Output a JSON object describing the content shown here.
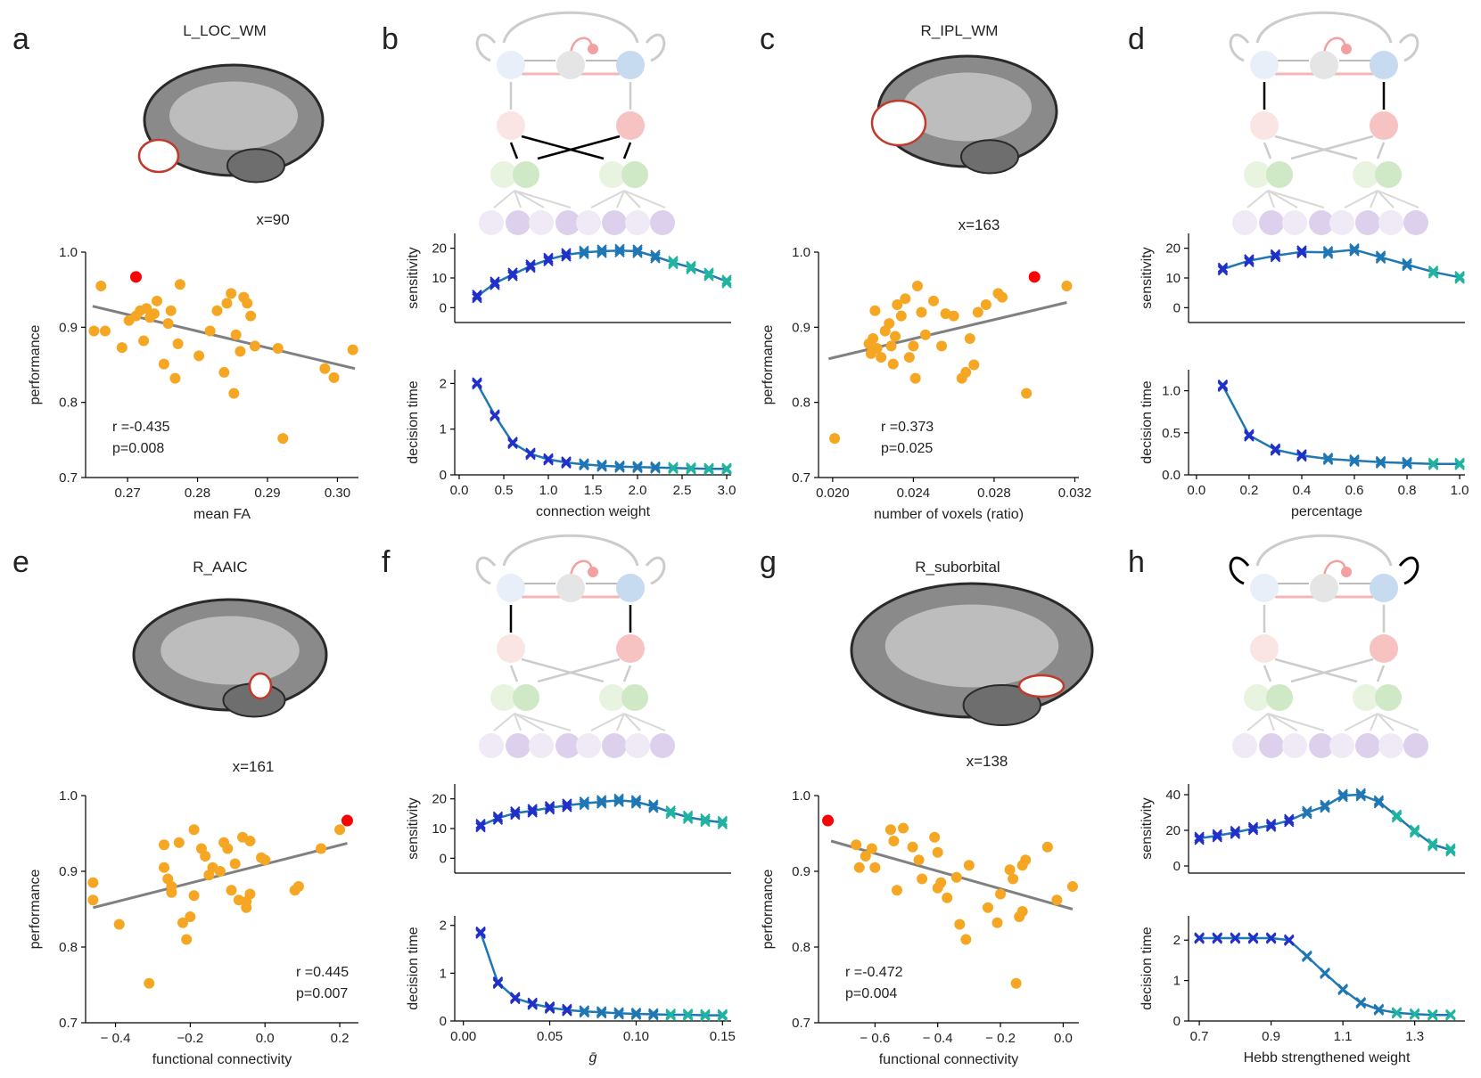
{
  "panels": {
    "a": {
      "letter": "a",
      "region": "L_LOC_WM",
      "slice": "x=90"
    },
    "b": {
      "letter": "b"
    },
    "c": {
      "letter": "c",
      "region": "R_IPL_WM",
      "slice": "x=163"
    },
    "d": {
      "letter": "d"
    },
    "e": {
      "letter": "e",
      "region": "R_AAIC",
      "slice": "x=161"
    },
    "f": {
      "letter": "f"
    },
    "g": {
      "letter": "g",
      "region": "R_suborbital",
      "slice": "x=138"
    },
    "h": {
      "letter": "h"
    }
  },
  "colors": {
    "scatter": "#f5a623",
    "highlight": "#ff0000",
    "fit": "#808080",
    "line": "#1f77b4"
  },
  "chart_data": [
    {
      "id": "a",
      "type": "scatter",
      "xlabel": "mean FA",
      "ylabel": "performance",
      "xlim": [
        0.264,
        0.303
      ],
      "ylim": [
        0.7,
        1.0
      ],
      "xticks": [
        0.27,
        0.28,
        0.29,
        0.3
      ],
      "xticklabels": [
        "0.27",
        "0.28",
        "0.29",
        "0.30"
      ],
      "yticks": [
        0.7,
        0.8,
        0.9,
        1.0
      ],
      "yticklabels": [
        "0.7",
        "0.8",
        "0.9",
        "1.0"
      ],
      "points": [
        [
          0.2652,
          0.895
        ],
        [
          0.2662,
          0.955
        ],
        [
          0.2668,
          0.895
        ],
        [
          0.2692,
          0.873
        ],
        [
          0.2702,
          0.909
        ],
        [
          0.2712,
          0.915
        ],
        [
          0.2718,
          0.922
        ],
        [
          0.2723,
          0.882
        ],
        [
          0.2727,
          0.925
        ],
        [
          0.2732,
          0.913
        ],
        [
          0.2738,
          0.918
        ],
        [
          0.2742,
          0.935
        ],
        [
          0.2752,
          0.851
        ],
        [
          0.2758,
          0.905
        ],
        [
          0.2762,
          0.922
        ],
        [
          0.2768,
          0.832
        ],
        [
          0.2772,
          0.878
        ],
        [
          0.2775,
          0.957
        ],
        [
          0.2802,
          0.862
        ],
        [
          0.2818,
          0.895
        ],
        [
          0.2828,
          0.922
        ],
        [
          0.2838,
          0.84
        ],
        [
          0.2842,
          0.932
        ],
        [
          0.2848,
          0.945
        ],
        [
          0.2852,
          0.812
        ],
        [
          0.2855,
          0.89
        ],
        [
          0.2861,
          0.868
        ],
        [
          0.2866,
          0.94
        ],
        [
          0.2871,
          0.932
        ],
        [
          0.2876,
          0.915
        ],
        [
          0.2882,
          0.875
        ],
        [
          0.2915,
          0.872
        ],
        [
          0.2922,
          0.752
        ],
        [
          0.2982,
          0.845
        ],
        [
          0.2995,
          0.833
        ],
        [
          0.3022,
          0.87
        ]
      ],
      "highlight": [
        0.2712,
        0.967
      ],
      "fit": [
        [
          0.265,
          0.928
        ],
        [
          0.3025,
          0.845
        ]
      ],
      "stats": [
        "r =-0.435",
        "p=0.008"
      ]
    },
    {
      "id": "c",
      "type": "scatter",
      "xlabel": "number of voxels (ratio)",
      "ylabel": "performance",
      "xlim": [
        0.0193,
        0.0322
      ],
      "ylim": [
        0.7,
        1.0
      ],
      "xticks": [
        0.02,
        0.024,
        0.028,
        0.032
      ],
      "xticklabels": [
        "0.020",
        "0.024",
        "0.028",
        "0.032"
      ],
      "yticks": [
        0.7,
        0.8,
        0.9,
        1.0
      ],
      "yticklabels": [
        "0.7",
        "0.8",
        "0.9",
        "1.0"
      ],
      "points": [
        [
          0.0201,
          0.752
        ],
        [
          0.0218,
          0.878
        ],
        [
          0.0219,
          0.865
        ],
        [
          0.022,
          0.885
        ],
        [
          0.0221,
          0.922
        ],
        [
          0.0222,
          0.872
        ],
        [
          0.0224,
          0.86
        ],
        [
          0.0226,
          0.895
        ],
        [
          0.0228,
          0.905
        ],
        [
          0.0229,
          0.875
        ],
        [
          0.023,
          0.851
        ],
        [
          0.0231,
          0.888
        ],
        [
          0.0232,
          0.93
        ],
        [
          0.0234,
          0.915
        ],
        [
          0.0236,
          0.938
        ],
        [
          0.0238,
          0.86
        ],
        [
          0.024,
          0.875
        ],
        [
          0.0241,
          0.832
        ],
        [
          0.0242,
          0.955
        ],
        [
          0.0244,
          0.92
        ],
        [
          0.0246,
          0.89
        ],
        [
          0.025,
          0.935
        ],
        [
          0.0254,
          0.875
        ],
        [
          0.0256,
          0.918
        ],
        [
          0.026,
          0.915
        ],
        [
          0.0264,
          0.832
        ],
        [
          0.0266,
          0.84
        ],
        [
          0.0268,
          0.885
        ],
        [
          0.027,
          0.85
        ],
        [
          0.0272,
          0.92
        ],
        [
          0.0276,
          0.93
        ],
        [
          0.0282,
          0.945
        ],
        [
          0.0284,
          0.94
        ],
        [
          0.0296,
          0.812
        ],
        [
          0.0316,
          0.955
        ]
      ],
      "highlight": [
        0.03,
        0.967
      ],
      "fit": [
        [
          0.0198,
          0.858
        ],
        [
          0.0316,
          0.933
        ]
      ],
      "stats": [
        "r =0.373",
        "p=0.025"
      ]
    },
    {
      "id": "e",
      "type": "scatter",
      "xlabel": "functional connectivity",
      "ylabel": "performance",
      "xlim": [
        -0.48,
        0.25
      ],
      "ylim": [
        0.7,
        1.0
      ],
      "xticks": [
        -0.4,
        -0.2,
        0.0,
        0.2
      ],
      "xticklabels": [
        "− 0.4",
        "−0.2",
        "0.0",
        "0.2"
      ],
      "yticks": [
        0.7,
        0.8,
        0.9,
        1.0
      ],
      "yticklabels": [
        "0.7",
        "0.8",
        "0.9",
        "1.0"
      ],
      "points": [
        [
          -0.46,
          0.885
        ],
        [
          -0.46,
          0.862
        ],
        [
          -0.39,
          0.83
        ],
        [
          -0.31,
          0.752
        ],
        [
          -0.27,
          0.935
        ],
        [
          -0.27,
          0.905
        ],
        [
          -0.26,
          0.89
        ],
        [
          -0.25,
          0.88
        ],
        [
          -0.25,
          0.872
        ],
        [
          -0.23,
          0.938
        ],
        [
          -0.22,
          0.832
        ],
        [
          -0.21,
          0.81
        ],
        [
          -0.2,
          0.84
        ],
        [
          -0.19,
          0.955
        ],
        [
          -0.19,
          0.868
        ],
        [
          -0.17,
          0.93
        ],
        [
          -0.16,
          0.92
        ],
        [
          -0.15,
          0.895
        ],
        [
          -0.14,
          0.905
        ],
        [
          -0.12,
          0.9
        ],
        [
          -0.11,
          0.938
        ],
        [
          -0.1,
          0.93
        ],
        [
          -0.09,
          0.875
        ],
        [
          -0.08,
          0.91
        ],
        [
          -0.07,
          0.862
        ],
        [
          -0.06,
          0.945
        ],
        [
          -0.05,
          0.852
        ],
        [
          -0.05,
          0.86
        ],
        [
          -0.04,
          0.94
        ],
        [
          -0.04,
          0.87
        ],
        [
          -0.01,
          0.918
        ],
        [
          0.0,
          0.915
        ],
        [
          0.08,
          0.875
        ],
        [
          0.09,
          0.88
        ],
        [
          0.15,
          0.93
        ],
        [
          0.2,
          0.955
        ]
      ],
      "highlight": [
        0.22,
        0.967
      ],
      "fit": [
        [
          -0.46,
          0.852
        ],
        [
          0.22,
          0.937
        ]
      ],
      "stats": [
        "r =0.445",
        "p=0.007"
      ]
    },
    {
      "id": "g",
      "type": "scatter",
      "xlabel": "functional connectivity",
      "ylabel": "performance",
      "xlim": [
        -0.78,
        0.05
      ],
      "ylim": [
        0.7,
        1.0
      ],
      "xticks": [
        -0.6,
        -0.4,
        -0.2,
        0.0
      ],
      "xticklabels": [
        "− 0.6",
        "− 0.4",
        "− 0.2",
        "0.0"
      ],
      "yticks": [
        0.7,
        0.8,
        0.9,
        1.0
      ],
      "yticklabels": [
        "0.7",
        "0.8",
        "0.9",
        "1.0"
      ],
      "points": [
        [
          -0.66,
          0.935
        ],
        [
          -0.65,
          0.905
        ],
        [
          -0.63,
          0.92
        ],
        [
          -0.61,
          0.93
        ],
        [
          -0.6,
          0.905
        ],
        [
          -0.55,
          0.955
        ],
        [
          -0.54,
          0.94
        ],
        [
          -0.53,
          0.875
        ],
        [
          -0.51,
          0.957
        ],
        [
          -0.48,
          0.932
        ],
        [
          -0.46,
          0.915
        ],
        [
          -0.45,
          0.89
        ],
        [
          -0.41,
          0.945
        ],
        [
          -0.4,
          0.925
        ],
        [
          -0.4,
          0.878
        ],
        [
          -0.39,
          0.885
        ],
        [
          -0.37,
          0.865
        ],
        [
          -0.34,
          0.892
        ],
        [
          -0.33,
          0.83
        ],
        [
          -0.31,
          0.81
        ],
        [
          -0.3,
          0.908
        ],
        [
          -0.24,
          0.852
        ],
        [
          -0.21,
          0.832
        ],
        [
          -0.2,
          0.87
        ],
        [
          -0.17,
          0.902
        ],
        [
          -0.16,
          0.89
        ],
        [
          -0.15,
          0.752
        ],
        [
          -0.14,
          0.84
        ],
        [
          -0.13,
          0.847
        ],
        [
          -0.13,
          0.908
        ],
        [
          -0.12,
          0.915
        ],
        [
          -0.05,
          0.932
        ],
        [
          -0.02,
          0.862
        ],
        [
          0.03,
          0.88
        ]
      ],
      "highlight": [
        -0.75,
        0.967
      ],
      "fit": [
        [
          -0.74,
          0.94
        ],
        [
          0.03,
          0.85
        ]
      ],
      "stats": [
        "r =-0.472",
        "p=0.004"
      ]
    },
    {
      "id": "b-top",
      "type": "line",
      "ylabel": "sensitivity",
      "xlim": [
        -0.05,
        3.05
      ],
      "ylim": [
        -5,
        25
      ],
      "yticks": [
        0,
        10,
        20
      ],
      "yticklabels": [
        "0",
        "10",
        "20"
      ],
      "x": [
        0.2,
        0.4,
        0.6,
        0.8,
        1.0,
        1.2,
        1.4,
        1.6,
        1.8,
        2.0,
        2.2,
        2.4,
        2.6,
        2.8,
        3.0
      ],
      "values": [
        3.8,
        8.2,
        11.2,
        14.0,
        16.2,
        17.8,
        18.6,
        19.0,
        19.2,
        19.0,
        17.2,
        15.2,
        13.5,
        11.2,
        8.8
      ],
      "marker_spread": 1.2
    },
    {
      "id": "b-bottom",
      "type": "line",
      "ylabel": "decision time",
      "xlabel": "connection weight",
      "xlim": [
        -0.05,
        3.05
      ],
      "ylim": [
        0,
        2.3
      ],
      "xticks": [
        0.0,
        0.5,
        1.0,
        1.5,
        2.0,
        2.5,
        3.0
      ],
      "xticklabels": [
        "0.0",
        "0.5",
        "1.0",
        "1.5",
        "2.0",
        "2.5",
        "3.0"
      ],
      "yticks": [
        0,
        1,
        2
      ],
      "yticklabels": [
        "0",
        "1",
        "2"
      ],
      "x": [
        0.2,
        0.4,
        0.6,
        0.8,
        1.0,
        1.2,
        1.4,
        1.6,
        1.8,
        2.0,
        2.2,
        2.4,
        2.6,
        2.8,
        3.0
      ],
      "values": [
        2.0,
        1.3,
        0.7,
        0.46,
        0.34,
        0.27,
        0.23,
        0.2,
        0.18,
        0.17,
        0.16,
        0.15,
        0.14,
        0.13,
        0.13
      ],
      "marker_spread": 0.05
    },
    {
      "id": "d-top",
      "type": "line",
      "ylabel": "sensitivity",
      "xlim": [
        -0.03,
        1.02
      ],
      "ylim": [
        -5,
        25
      ],
      "yticks": [
        0,
        10,
        20
      ],
      "yticklabels": [
        "0",
        "10",
        "20"
      ],
      "x": [
        0.1,
        0.2,
        0.3,
        0.4,
        0.5,
        0.6,
        0.7,
        0.8,
        0.9,
        1.0
      ],
      "values": [
        13.0,
        15.8,
        17.5,
        18.8,
        18.6,
        19.5,
        17.0,
        14.5,
        12.0,
        10.2
      ],
      "marker_spread": 1.0
    },
    {
      "id": "d-bottom",
      "type": "line",
      "ylabel": "decision time",
      "xlabel": "percentage",
      "xlim": [
        -0.03,
        1.02
      ],
      "ylim": [
        0,
        1.25
      ],
      "xticks": [
        0.0,
        0.2,
        0.4,
        0.6,
        0.8,
        1.0
      ],
      "xticklabels": [
        "0.0",
        "0.2",
        "0.4",
        "0.6",
        "0.8",
        "1.0"
      ],
      "yticks": [
        0.0,
        0.5,
        1.0
      ],
      "yticklabels": [
        "0.0",
        "0.5",
        "1.0"
      ],
      "x": [
        0.1,
        0.2,
        0.3,
        0.4,
        0.5,
        0.6,
        0.7,
        0.8,
        0.9,
        1.0
      ],
      "values": [
        1.06,
        0.47,
        0.3,
        0.23,
        0.19,
        0.17,
        0.15,
        0.14,
        0.13,
        0.13
      ],
      "marker_spread": 0.03
    },
    {
      "id": "f-top",
      "type": "line",
      "ylabel": "sensitivity",
      "xlim": [
        -0.005,
        0.155
      ],
      "ylim": [
        -5,
        25
      ],
      "yticks": [
        0,
        10,
        20
      ],
      "yticklabels": [
        "0",
        "10",
        "20"
      ],
      "x": [
        0.01,
        0.02,
        0.03,
        0.04,
        0.05,
        0.06,
        0.07,
        0.08,
        0.09,
        0.1,
        0.11,
        0.12,
        0.13,
        0.14,
        0.15
      ],
      "values": [
        11.0,
        13.5,
        15.2,
        16.0,
        17.0,
        17.8,
        18.5,
        19.0,
        19.5,
        19.0,
        17.5,
        15.5,
        13.8,
        12.8,
        12.0
      ],
      "marker_spread": 1.2
    },
    {
      "id": "f-bottom",
      "type": "line",
      "ylabel": "decision time",
      "xlabel": "ḡ",
      "xlim": [
        -0.005,
        0.155
      ],
      "ylim": [
        0,
        2.2
      ],
      "xticks": [
        0.0,
        0.05,
        0.1,
        0.15
      ],
      "xticklabels": [
        "0.00",
        "0.05",
        "0.10",
        "0.15"
      ],
      "yticks": [
        0,
        1,
        2
      ],
      "yticklabels": [
        "0",
        "1",
        "2"
      ],
      "x": [
        0.01,
        0.02,
        0.03,
        0.04,
        0.05,
        0.06,
        0.07,
        0.08,
        0.09,
        0.1,
        0.11,
        0.12,
        0.13,
        0.14,
        0.15
      ],
      "values": [
        1.85,
        0.8,
        0.48,
        0.36,
        0.28,
        0.23,
        0.2,
        0.18,
        0.16,
        0.15,
        0.14,
        0.13,
        0.13,
        0.12,
        0.12
      ],
      "marker_spread": 0.05
    },
    {
      "id": "h-top",
      "type": "line",
      "ylabel": "sensitivity",
      "xlim": [
        0.67,
        1.44
      ],
      "ylim": [
        -4,
        46
      ],
      "yticks": [
        0,
        20,
        40
      ],
      "yticklabels": [
        "0",
        "20",
        "40"
      ],
      "x": [
        0.7,
        0.75,
        0.8,
        0.85,
        0.9,
        0.95,
        1.0,
        1.05,
        1.1,
        1.15,
        1.2,
        1.25,
        1.3,
        1.35,
        1.4
      ],
      "values": [
        15.5,
        17.0,
        18.8,
        21.0,
        22.8,
        25.5,
        30.0,
        33.5,
        39.5,
        40.0,
        36.0,
        28.0,
        19.5,
        12.0,
        9.0
      ],
      "marker_spread": 1.8
    },
    {
      "id": "h-bottom",
      "type": "line",
      "ylabel": "decision time",
      "xlabel": "Hebb strengthened weight",
      "xlim": [
        0.67,
        1.44
      ],
      "ylim": [
        0,
        2.6
      ],
      "xticks": [
        0.7,
        0.9,
        1.1,
        1.3
      ],
      "xticklabels": [
        "0.7",
        "0.9",
        "1.1",
        "1.3"
      ],
      "yticks": [
        0,
        1,
        2
      ],
      "yticklabels": [
        "0",
        "1",
        "2"
      ],
      "x": [
        0.7,
        0.75,
        0.8,
        0.85,
        0.9,
        0.95,
        1.0,
        1.05,
        1.1,
        1.15,
        1.2,
        1.25,
        1.3,
        1.35,
        1.4
      ],
      "values": [
        2.05,
        2.05,
        2.05,
        2.05,
        2.05,
        2.0,
        1.6,
        1.18,
        0.78,
        0.45,
        0.28,
        0.2,
        0.17,
        0.15,
        0.15
      ],
      "marker_spread": 0.04
    }
  ]
}
